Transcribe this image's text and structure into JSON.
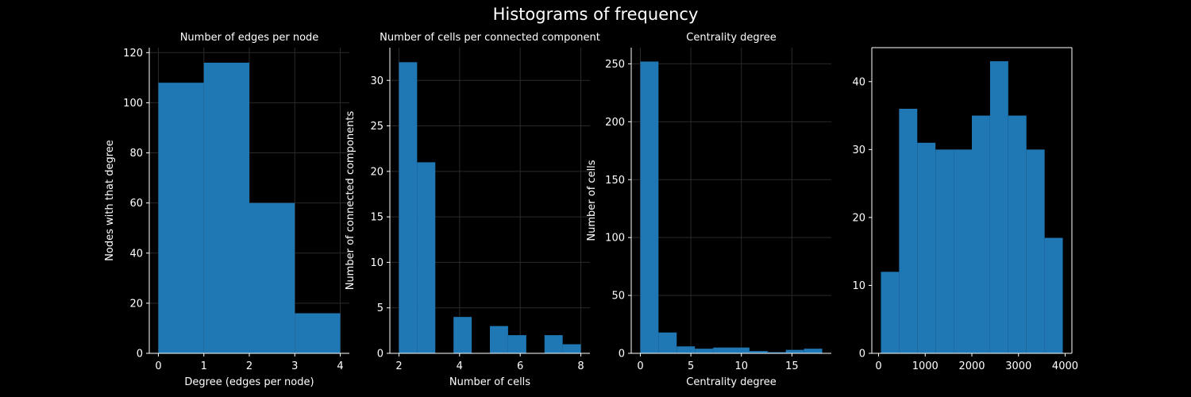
{
  "figure": {
    "title": "Histograms of frequency",
    "bar_color": "#1f77b4",
    "background": "#000000",
    "text_color": "#ffffff"
  },
  "chart_data": [
    {
      "type": "bar",
      "title": "Number of edges per node",
      "xlabel": "Degree (edges per node)",
      "ylabel": "Nodes with that degree",
      "bins": [
        [
          0,
          1
        ],
        [
          1,
          2
        ],
        [
          2,
          3
        ],
        [
          3,
          4
        ]
      ],
      "values": [
        108,
        116,
        60,
        16
      ],
      "xlim": [
        -0.2,
        4.2
      ],
      "ylim": [
        0,
        122
      ],
      "xticks": [
        0,
        1,
        2,
        3,
        4
      ],
      "yticks": [
        0,
        20,
        40,
        60,
        80,
        100,
        120
      ],
      "grid": true,
      "frame": "left-bottom"
    },
    {
      "type": "bar",
      "title": "Number of cells per connected component",
      "xlabel": "Number of cells",
      "ylabel": "Number of connected components",
      "bins": [
        [
          2,
          2.6
        ],
        [
          2.6,
          3.2
        ],
        [
          3.2,
          3.8
        ],
        [
          3.8,
          4.4
        ],
        [
          4.4,
          5.0
        ],
        [
          5.0,
          5.6
        ],
        [
          5.6,
          6.2
        ],
        [
          6.2,
          6.8
        ],
        [
          6.8,
          7.4
        ],
        [
          7.4,
          8.0
        ]
      ],
      "values": [
        32,
        21,
        0,
        4,
        0,
        3,
        2,
        0,
        2,
        1
      ],
      "xlim": [
        1.7,
        8.3
      ],
      "ylim": [
        0,
        33.6
      ],
      "xticks": [
        2,
        4,
        6,
        8
      ],
      "yticks": [
        0,
        5,
        10,
        15,
        20,
        25,
        30
      ],
      "grid": true,
      "frame": "left-bottom"
    },
    {
      "type": "bar",
      "title": "Centrality degree",
      "xlabel": "Centrality degree",
      "ylabel": "Number of cells",
      "bins": [
        [
          0,
          1.8
        ],
        [
          1.8,
          3.6
        ],
        [
          3.6,
          5.4
        ],
        [
          5.4,
          7.2
        ],
        [
          7.2,
          9.0
        ],
        [
          9.0,
          10.8
        ],
        [
          10.8,
          12.6
        ],
        [
          12.6,
          14.4
        ],
        [
          14.4,
          16.2
        ],
        [
          16.2,
          18.0
        ]
      ],
      "values": [
        252,
        18,
        6,
        4,
        5,
        5,
        2,
        1,
        3,
        4
      ],
      "xlim": [
        -0.9,
        18.9
      ],
      "ylim": [
        0,
        264
      ],
      "xticks": [
        0,
        5,
        10,
        15
      ],
      "yticks": [
        0,
        50,
        100,
        150,
        200,
        250
      ],
      "grid": true,
      "frame": "left-bottom"
    },
    {
      "type": "bar",
      "title": "",
      "xlabel": "",
      "ylabel": "",
      "bins": [
        [
          50,
          440
        ],
        [
          440,
          830
        ],
        [
          830,
          1220
        ],
        [
          1220,
          1610
        ],
        [
          1610,
          2000
        ],
        [
          2000,
          2390
        ],
        [
          2390,
          2780
        ],
        [
          2780,
          3170
        ],
        [
          3170,
          3560
        ],
        [
          3560,
          3950
        ]
      ],
      "values": [
        12,
        36,
        31,
        30,
        30,
        35,
        43,
        35,
        30,
        17
      ],
      "xlim": [
        -145,
        4145
      ],
      "ylim": [
        0,
        45
      ],
      "xticks": [
        0,
        1000,
        2000,
        3000,
        4000
      ],
      "yticks": [
        0,
        10,
        20,
        30,
        40
      ],
      "grid": false,
      "frame": "box"
    }
  ]
}
